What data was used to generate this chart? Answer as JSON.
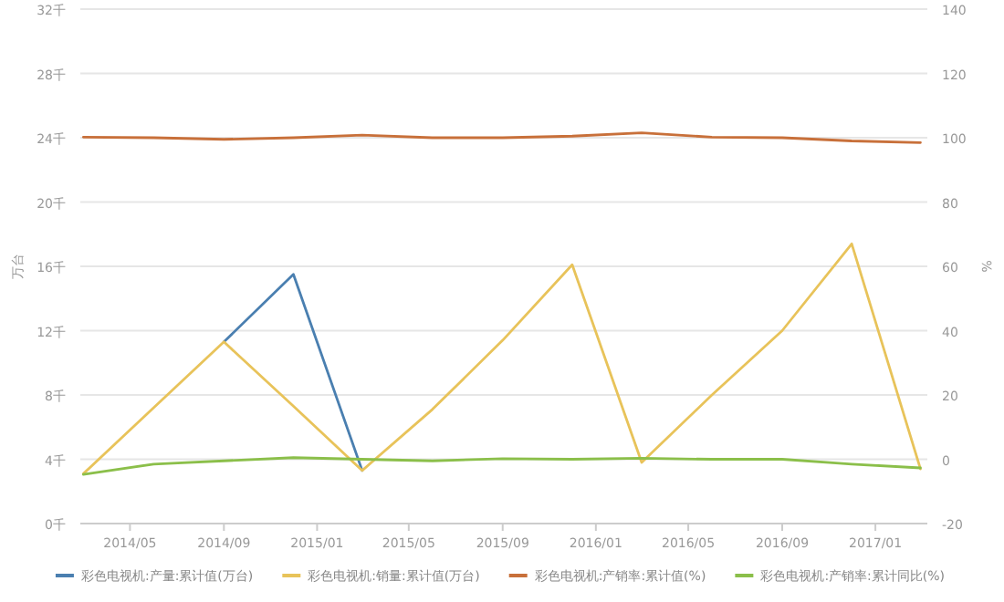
{
  "chart_data": {
    "type": "line",
    "ylabel": "万台",
    "y2label": "%",
    "x": [
      "2014-03",
      "2014-06",
      "2014-09",
      "2014-12",
      "2015-03",
      "2015-06",
      "2015-09",
      "2015-12",
      "2016-03",
      "2016-06",
      "2016-09",
      "2016-12",
      "2017-03"
    ],
    "xlim": [
      "2014-02-25",
      "2017-03-10"
    ],
    "xticks": [
      {
        "value": "2014-05",
        "label": "2014/05"
      },
      {
        "value": "2014-09",
        "label": "2014/09"
      },
      {
        "value": "2015-01",
        "label": "2015/01"
      },
      {
        "value": "2015-05",
        "label": "2015/05"
      },
      {
        "value": "2015-09",
        "label": "2015/09"
      },
      {
        "value": "2016-01",
        "label": "2016/01"
      },
      {
        "value": "2016-05",
        "label": "2016/05"
      },
      {
        "value": "2016-09",
        "label": "2016/09"
      },
      {
        "value": "2017-01",
        "label": "2017/01"
      }
    ],
    "ylim": [
      0,
      32
    ],
    "yticks": [
      {
        "value": 0,
        "label": "0千"
      },
      {
        "value": 4,
        "label": "4千"
      },
      {
        "value": 8,
        "label": "8千"
      },
      {
        "value": 12,
        "label": "12千"
      },
      {
        "value": 16,
        "label": "16千"
      },
      {
        "value": 20,
        "label": "20千"
      },
      {
        "value": 24,
        "label": "24千"
      },
      {
        "value": 28,
        "label": "28千"
      },
      {
        "value": 32,
        "label": "32千"
      }
    ],
    "y2lim": [
      -20,
      140
    ],
    "y2ticks": [
      -20,
      0,
      20,
      40,
      60,
      80,
      100,
      120,
      140
    ],
    "grid": "y",
    "legend": "bottom",
    "marker": "none",
    "line_style": "solid",
    "series": [
      {
        "name": "彩色电视机:产量:累计值(万台)",
        "color": "#4a7fb0",
        "values": [
          null,
          null,
          11.3,
          15.5,
          3.3,
          null,
          null,
          null,
          null,
          null,
          null,
          null,
          null
        ]
      },
      {
        "name": "彩色电视机:销量:累计值(万台)",
        "color": "#e8c35a",
        "values": [
          3.1,
          7.2,
          11.3,
          7.3,
          3.3,
          7.1,
          11.4,
          16.1,
          3.8,
          8.0,
          12.0,
          17.4,
          3.4
        ]
      },
      {
        "name": "彩色电视机:产销率:累计值(%)",
        "color": "#c8703a",
        "axis": "y2",
        "values": [
          100.2,
          100,
          99.5,
          100,
          100.8,
          100,
          100,
          100.5,
          101.5,
          100.2,
          100,
          99,
          98.5
        ]
      },
      {
        "name": "彩色电视机:产销率:累计同比(%)",
        "color": "#8bbf4a",
        "axis": "y2",
        "values": [
          -4.7,
          -1.5,
          -0.5,
          0.5,
          0,
          -0.5,
          0.2,
          0,
          0.3,
          0,
          0,
          -1.5,
          -2.7
        ]
      }
    ]
  }
}
